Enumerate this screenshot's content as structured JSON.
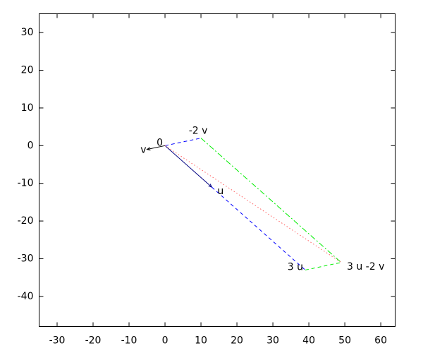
{
  "chart_data": {
    "type": "vector",
    "xlim": [
      -35,
      64
    ],
    "ylim": [
      -48,
      35
    ],
    "xticks": [
      -30,
      -20,
      -10,
      0,
      10,
      20,
      30,
      40,
      50,
      60
    ],
    "yticks": [
      -40,
      -30,
      -20,
      -10,
      0,
      10,
      20,
      30
    ],
    "grid": false,
    "series": [
      {
        "color": "#000080",
        "style": "solid",
        "arrow": true,
        "x": [
          0,
          13
        ],
        "y": [
          0,
          -11
        ]
      },
      {
        "color": "#000000",
        "style": "solid",
        "arrow": true,
        "x": [
          0,
          -5
        ],
        "y": [
          0,
          -1
        ]
      },
      {
        "color": "#0000ff",
        "style": "dashed",
        "arrow": false,
        "x": [
          0,
          10
        ],
        "y": [
          0,
          2
        ]
      },
      {
        "color": "#0000ff",
        "style": "dashed",
        "arrow": false,
        "x": [
          13,
          39
        ],
        "y": [
          -11,
          -33
        ]
      },
      {
        "color": "#00ee00",
        "style": "dashdot",
        "arrow": false,
        "x": [
          10,
          49
        ],
        "y": [
          2,
          -31
        ]
      },
      {
        "color": "#00ee00",
        "style": "dashed",
        "arrow": false,
        "x": [
          39,
          49
        ],
        "y": [
          -33,
          -31
        ]
      },
      {
        "color": "#ff6060",
        "style": "dotted",
        "arrow": false,
        "x": [
          0,
          49
        ],
        "y": [
          0,
          -31
        ]
      }
    ],
    "annotations": [
      {
        "text": "0",
        "x": 0,
        "y": 0,
        "anchor": "upper-left"
      },
      {
        "text": "v",
        "x": -5,
        "y": -1,
        "anchor": "left"
      },
      {
        "text": "-2 v",
        "x": 10,
        "y": 2,
        "anchor": "above"
      },
      {
        "text": "u",
        "x": 13,
        "y": -11,
        "anchor": "lower-right"
      },
      {
        "text": "3 u",
        "x": 39,
        "y": -33,
        "anchor": "upper-left"
      },
      {
        "text": "3 u -2 v",
        "x": 49,
        "y": -31,
        "anchor": "lower-right"
      }
    ]
  }
}
